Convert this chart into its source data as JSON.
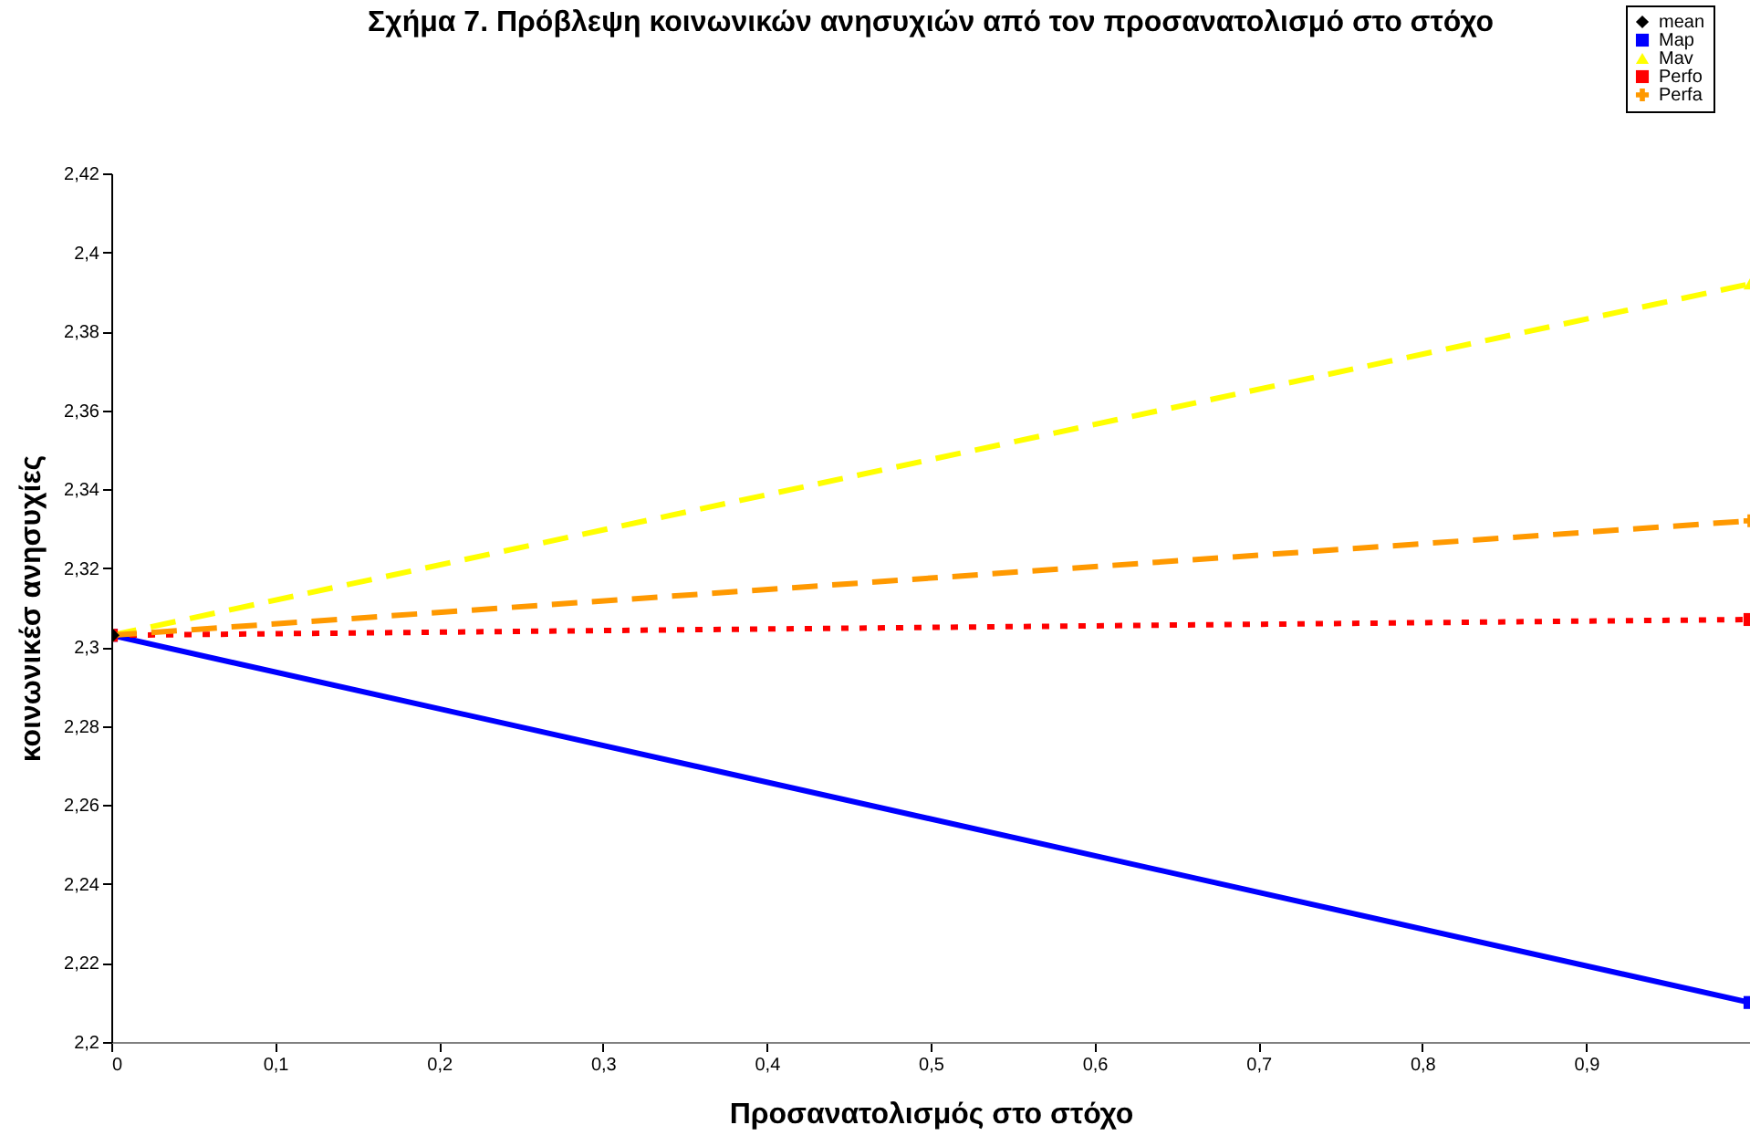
{
  "chart_data": {
    "type": "line",
    "title": "Σχήμα 7. Πρόβλεψη  κοινωνικών ανησυχιών από τον προσανατολισμό στο στόχο",
    "xlabel": "Προσανατολισμός στο στόχο",
    "ylabel": "κοινωνικέσ ανησυχίες",
    "xlim": [
      0,
      1
    ],
    "xticks": [
      0,
      {
        "value": 0.1,
        "label": "0,1"
      },
      {
        "value": 0.2,
        "label": "0,2"
      },
      {
        "value": 0.3,
        "label": "0,3"
      },
      {
        "value": 0.4,
        "label": "0,4"
      },
      {
        "value": 0.5,
        "label": "0,5"
      },
      {
        "value": 0.6,
        "label": "0,6"
      },
      {
        "value": 0.7,
        "label": "0,7"
      },
      {
        "value": 0.8,
        "label": "0,8"
      },
      {
        "value": 0.9,
        "label": "0,9"
      }
    ],
    "ylim": [
      2.2,
      2.42
    ],
    "yticks": [
      {
        "value": 2.2,
        "label": "2,2"
      },
      {
        "value": 2.22,
        "label": "2,22"
      },
      {
        "value": 2.24,
        "label": "2,24"
      },
      {
        "value": 2.26,
        "label": "2,26"
      },
      {
        "value": 2.28,
        "label": "2,28"
      },
      {
        "value": 2.3,
        "label": "2,3"
      },
      {
        "value": 2.32,
        "label": "2,32"
      },
      {
        "value": 2.34,
        "label": "2,34"
      },
      {
        "value": 2.36,
        "label": "2,36"
      },
      {
        "value": 2.38,
        "label": "2,38"
      },
      {
        "value": 2.4,
        "label": "2,4"
      },
      {
        "value": 2.42,
        "label": "2,42"
      }
    ],
    "grid": false,
    "legend": "top right",
    "x": [
      0,
      1
    ],
    "series": [
      {
        "name": "mean",
        "type": "scatter",
        "color": "#000000",
        "marker": "diamond",
        "x": [
          0
        ],
        "values": [
          2.303
        ]
      },
      {
        "name": "Map",
        "color": "#0000ff",
        "marker": "square",
        "line_style": "solid",
        "values": [
          2.303,
          2.21
        ]
      },
      {
        "name": "Mav",
        "color": "#ffff00",
        "marker": "triangle",
        "line_style": "dashed",
        "values": [
          2.303,
          2.392
        ]
      },
      {
        "name": "Perfo",
        "color": "#ff0000",
        "marker": "square",
        "line_style": "dotted",
        "values": [
          2.303,
          2.307
        ]
      },
      {
        "name": "Perfa",
        "color": "#ff9900",
        "marker": "cross",
        "line_style": "dashed",
        "values": [
          2.303,
          2.332
        ]
      }
    ]
  }
}
